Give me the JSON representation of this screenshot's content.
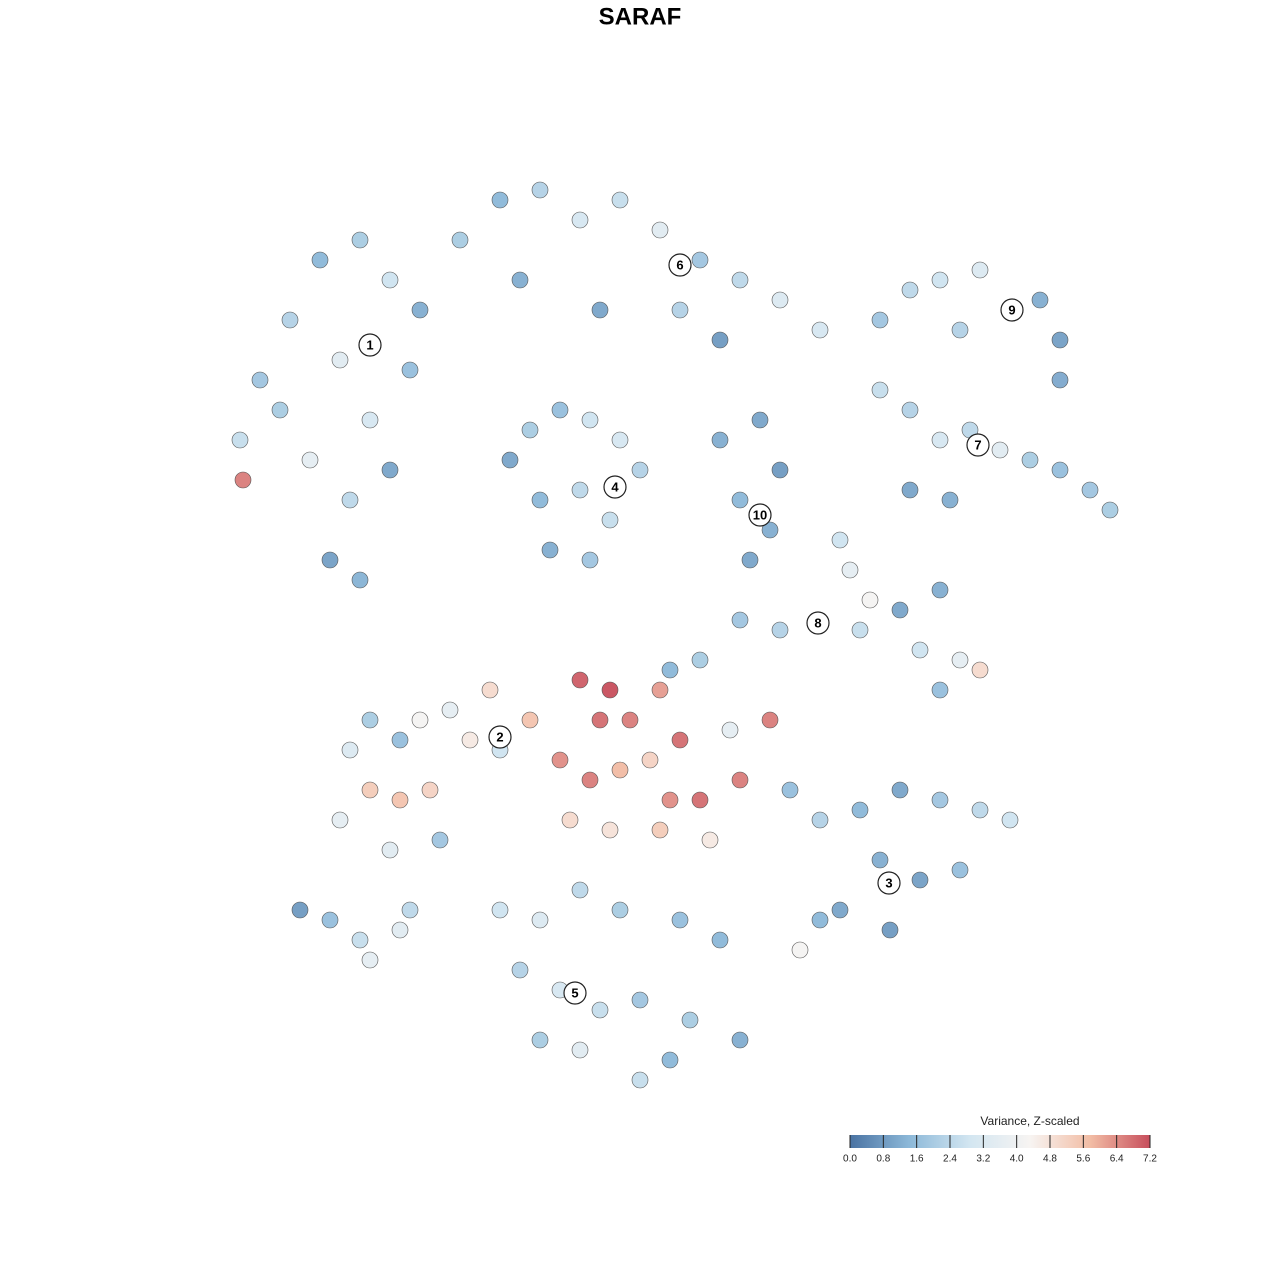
{
  "chart_data": {
    "type": "scatter",
    "title": "SARAF",
    "xlim": [
      -50,
      50
    ],
    "ylim": [
      -50,
      50
    ],
    "x": [
      -40,
      -38,
      -35,
      -32,
      -28,
      -25,
      -22,
      -30,
      -27,
      -33,
      -29,
      -25,
      -31,
      -28,
      -36,
      -23,
      -18,
      -14,
      -10,
      -6,
      -2,
      2,
      6,
      10,
      14,
      18,
      -12,
      -4,
      4,
      8,
      24,
      27,
      30,
      34,
      37,
      40,
      42,
      42,
      32,
      24,
      27,
      30,
      33,
      36,
      39,
      42,
      45,
      47,
      31,
      27,
      -13,
      -11,
      -8,
      -5,
      -2,
      0,
      -10,
      -6,
      -3,
      -9,
      -5,
      8,
      12,
      14,
      10,
      13,
      11,
      20,
      21,
      23,
      22,
      26,
      30,
      28,
      32,
      34,
      30,
      10,
      14,
      6,
      3,
      -29,
      -27,
      -24,
      -22,
      -19,
      -15,
      -17,
      -14,
      -27,
      -24,
      -21,
      -30,
      -25,
      -20,
      -6,
      -3,
      -4,
      -1,
      2,
      4,
      -8,
      -5,
      -2,
      1,
      3,
      6,
      -7,
      -3,
      2,
      7,
      10,
      13,
      -11,
      9,
      15,
      18,
      22,
      26,
      30,
      34,
      37,
      24,
      28,
      32,
      20,
      25,
      16,
      18,
      -14,
      -10,
      -6,
      -2,
      4,
      8,
      -12,
      -8,
      -4,
      0,
      5,
      10,
      -6,
      0,
      -10,
      3,
      -34,
      -31,
      -28,
      -27,
      -24,
      -23,
      -39.7
    ],
    "y": [
      20,
      26,
      32,
      38,
      40,
      36,
      33,
      28,
      22,
      18,
      14,
      17,
      8,
      6,
      23,
      27,
      40,
      44,
      45,
      42,
      44,
      41,
      38,
      36,
      34,
      31,
      36,
      33,
      33,
      30,
      32,
      35,
      36,
      37,
      33,
      34,
      30,
      26,
      31,
      25,
      23,
      20,
      21,
      19,
      18,
      17,
      15,
      13,
      14,
      15,
      18,
      21,
      23,
      22,
      20,
      17,
      14,
      15,
      12,
      9,
      8,
      20,
      22,
      17,
      14,
      11,
      8,
      10,
      7,
      4,
      1,
      3,
      5,
      -1,
      -2,
      -3,
      -5,
      2,
      1,
      -2,
      -3,
      -11,
      -8,
      -10,
      -8,
      -7,
      -5,
      -10,
      -11,
      -15,
      -16,
      -15,
      -18,
      -21,
      -20,
      -4,
      -5,
      -8,
      -8,
      -5,
      -10,
      -12,
      -14,
      -13,
      -12,
      -16,
      -16,
      -18,
      -19,
      -19,
      -20,
      -14,
      -8,
      -8,
      -9,
      -15,
      -18,
      -17,
      -15,
      -16,
      -17,
      -18,
      -22,
      -24,
      -23,
      -27,
      -29,
      -31,
      -28,
      -27,
      -28,
      -25,
      -27,
      -28,
      -30,
      -33,
      -35,
      -37,
      -36,
      -38,
      -40,
      -41,
      -44,
      -40,
      -42,
      -27,
      -28,
      -30,
      -32,
      -29,
      -27,
      16
    ],
    "values": [
      2.6,
      1.8,
      2.2,
      1.4,
      2.0,
      2.8,
      1.2,
      3.4,
      3.0,
      3.6,
      2.4,
      1.0,
      0.9,
      1.3,
      2.0,
      1.6,
      2.0,
      1.4,
      2.2,
      3.0,
      2.6,
      3.4,
      1.8,
      2.4,
      3.2,
      3.0,
      1.2,
      1.0,
      2.2,
      0.8,
      1.8,
      2.4,
      2.8,
      3.2,
      2.6,
      1.2,
      0.9,
      1.1,
      2.2,
      2.6,
      2.2,
      3.0,
      2.4,
      3.4,
      2.0,
      1.6,
      1.8,
      2.0,
      1.2,
      1.0,
      1.0,
      2.0,
      1.6,
      2.8,
      3.0,
      2.2,
      1.4,
      2.4,
      2.6,
      1.2,
      1.8,
      1.2,
      1.0,
      0.8,
      1.4,
      1.2,
      1.0,
      2.8,
      3.6,
      4.2,
      2.6,
      1.0,
      1.2,
      2.8,
      3.6,
      5.0,
      1.6,
      1.8,
      2.2,
      2.0,
      1.4,
      3.2,
      2.0,
      1.6,
      4.2,
      3.6,
      5.0,
      4.6,
      2.8,
      5.4,
      5.6,
      5.2,
      3.6,
      3.4,
      1.8,
      7.0,
      7.2,
      6.8,
      6.6,
      6.2,
      6.8,
      6.4,
      6.6,
      5.8,
      5.2,
      6.4,
      6.8,
      5.0,
      4.8,
      5.4,
      4.6,
      6.6,
      6.6,
      5.6,
      3.6,
      1.6,
      2.2,
      1.4,
      1.0,
      1.8,
      2.4,
      2.8,
      1.2,
      0.9,
      1.6,
      1.0,
      0.8,
      4.2,
      1.4,
      2.8,
      3.2,
      2.4,
      2.0,
      1.6,
      1.4,
      2.2,
      3.0,
      2.6,
      1.8,
      2.0,
      1.2,
      3.4,
      2.6,
      2.0,
      1.4,
      0.8,
      1.6,
      2.6,
      3.6,
      3.4,
      2.4,
      6.6
    ],
    "annotations": [
      {
        "label": "1",
        "x": -27,
        "y": 29.5
      },
      {
        "label": "6",
        "x": 4,
        "y": 37.5
      },
      {
        "label": "9",
        "x": 37.2,
        "y": 33
      },
      {
        "label": "7",
        "x": 33.8,
        "y": 19.5
      },
      {
        "label": "4",
        "x": -2.5,
        "y": 15.3
      },
      {
        "label": "10",
        "x": 12,
        "y": 12.5
      },
      {
        "label": "8",
        "x": 17.8,
        "y": 1.7
      },
      {
        "label": "2",
        "x": -14,
        "y": -9.7
      },
      {
        "label": "3",
        "x": 24.9,
        "y": -24.3
      },
      {
        "label": "5",
        "x": -6.5,
        "y": -35.3
      }
    ],
    "colorbar": {
      "title": "Variance, Z-scaled",
      "clim": [
        0,
        7.2
      ],
      "colorscale": [
        "#4a73a3",
        "#8db9d9",
        "#d3e6f1",
        "#f7f4f2",
        "#f2bda5",
        "#c74e5c"
      ],
      "ticks": [
        {
          "value": 0,
          "label": "0.0"
        },
        0.8,
        1.6,
        2.4,
        3.2,
        {
          "value": 4,
          "label": "4.0"
        },
        4.8,
        5.6,
        6.4,
        7.2
      ]
    }
  }
}
